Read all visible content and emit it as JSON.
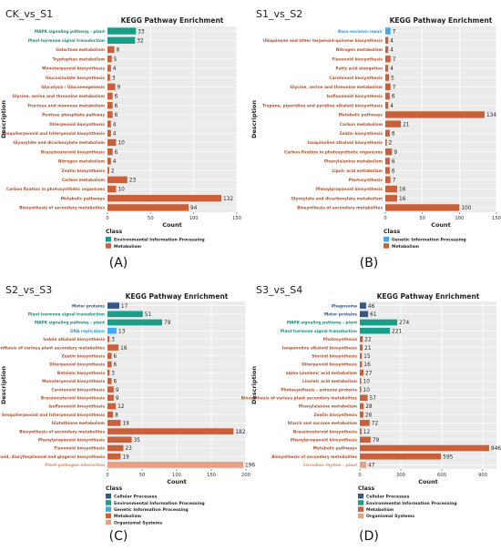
{
  "panels": [
    {
      "label": "(A)",
      "comparison": "CK_vs_S1"
    },
    {
      "label": "(B)",
      "comparison": "S1_vs_S2"
    },
    {
      "label": "(C)",
      "comparison": "S2_vs_S3"
    },
    {
      "label": "(D)",
      "comparison": "S3_vs_S4"
    }
  ],
  "class_colors": {
    "Cellular Processes": "#34568b",
    "Environmental Information Processing": "#1a9e8c",
    "Genetic Information Processing": "#3fa9f5",
    "Metabolism": "#c9603a",
    "Organismal Systems": "#e8a07e"
  },
  "chart_data": [
    {
      "type": "bar",
      "orientation": "horizontal",
      "title": "KEGG Pathway Enrichment",
      "xlabel": "Count",
      "ylabel": "Description",
      "legend_title": "Class",
      "xlim": [
        0,
        150
      ],
      "xticks": [
        0,
        50,
        100,
        150
      ],
      "legend": [
        "Environmental Information Processing",
        "Metabolism"
      ],
      "categories": [
        "MAPK signaling pathway - plant",
        "Plant hormone signal transduction",
        "Galactose metabolism",
        "Tryptophan metabolism",
        "Monoterpenoid biosynthesis",
        "Glucosinolate biosynthesis",
        "Glycolysis / Gluconeogenesis",
        "Glycine, serine and threonine metabolism",
        "Fructose and mannose metabolism",
        "Pentose phosphate pathway",
        "Diterpenoid biosynthesis",
        "Sesquiterpenoid and triterpenoid biosynthesis",
        "Glyoxylate and dicarboxylate metabolism",
        "Brassinosteroid biosynthesis",
        "Nitrogen metabolism",
        "Zeatin biosynthesis",
        "Carbon metabolism",
        "Carbon fixation in photosynthetic organisms",
        "Metabolic pathways",
        "Biosynthesis of secondary metabolites"
      ],
      "values": [
        33,
        32,
        8,
        5,
        4,
        3,
        9,
        6,
        6,
        6,
        4,
        4,
        10,
        6,
        4,
        2,
        23,
        10,
        132,
        94
      ],
      "classes": [
        "Environmental Information Processing",
        "Environmental Information Processing",
        "Metabolism",
        "Metabolism",
        "Metabolism",
        "Metabolism",
        "Metabolism",
        "Metabolism",
        "Metabolism",
        "Metabolism",
        "Metabolism",
        "Metabolism",
        "Metabolism",
        "Metabolism",
        "Metabolism",
        "Metabolism",
        "Metabolism",
        "Metabolism",
        "Metabolism",
        "Metabolism"
      ]
    },
    {
      "type": "bar",
      "orientation": "horizontal",
      "title": "KEGG Pathway Enrichment",
      "xlabel": "Count",
      "ylabel": "Description",
      "legend_title": "Class",
      "xlim": [
        0,
        150
      ],
      "xticks": [
        0,
        50,
        100,
        150
      ],
      "legend": [
        "Genetic Information Processing",
        "Metabolism"
      ],
      "categories": [
        "Base excision repair",
        "Ubiquinone and other terpenoid-quinone biosynthesis",
        "Nitrogen metabolism",
        "Flavonoid biosynthesis",
        "Fatty acid elongation",
        "Carotenoid biosynthesis",
        "Glycine, serine and threonine metabolism",
        "Isoflavonoid biosynthesis",
        "Tropane, piperidine and pyridine alkaloid biosynthesis",
        "Metabolic pathways",
        "Carbon metabolism",
        "Zeatin biosynthesis",
        "Isoquinoline alkaloid biosynthesis",
        "Carbon fixation in photosynthetic organisms",
        "Phenylalanine metabolism",
        "Lipoic acid metabolism",
        "Photosynthesis",
        "Phenylpropanoid biosynthesis",
        "Glyoxylate and dicarboxylate metabolism",
        "Biosynthesis of secondary metabolites"
      ],
      "values": [
        7,
        4,
        4,
        7,
        4,
        5,
        7,
        6,
        4,
        134,
        21,
        6,
        2,
        9,
        6,
        6,
        7,
        16,
        16,
        100
      ],
      "classes": [
        "Genetic Information Processing",
        "Metabolism",
        "Metabolism",
        "Metabolism",
        "Metabolism",
        "Metabolism",
        "Metabolism",
        "Metabolism",
        "Metabolism",
        "Metabolism",
        "Metabolism",
        "Metabolism",
        "Metabolism",
        "Metabolism",
        "Metabolism",
        "Metabolism",
        "Metabolism",
        "Metabolism",
        "Metabolism",
        "Metabolism"
      ]
    },
    {
      "type": "bar",
      "orientation": "horizontal",
      "title": "KEGG Pathway Enrichment",
      "xlabel": "Count",
      "ylabel": "Description",
      "legend_title": "Class",
      "xlim": [
        0,
        200
      ],
      "xticks": [
        0,
        50,
        100,
        150,
        200
      ],
      "legend": [
        "Cellular Processes",
        "Environmental Information Processing",
        "Genetic Information Processing",
        "Metabolism",
        "Organismal Systems"
      ],
      "categories": [
        "Motor proteins",
        "Plant hormone signal transduction",
        "MAPK signaling pathway - plant",
        "DNA replication",
        "Indole alkaloid biosynthesis",
        "Biosynthesis of various plant secondary metabolites",
        "Zeatin biosynthesis",
        "Diterpenoid biosynthesis",
        "Betalain biosynthesis",
        "Monoterpenoid biosynthesis",
        "Carotenoid biosynthesis",
        "Brassinosteroid biosynthesis",
        "Isoflavonoid biosynthesis",
        "Sesquiterpenoid and triterpenoid biosynthesis",
        "Glutathione metabolism",
        "Biosynthesis of secondary metabolites",
        "Phenylpropanoid biosynthesis",
        "Flavonoid biosynthesis",
        "Stilbenoid, diarylheptanoid and gingerol biosynthesis",
        "Plant-pathogen interaction"
      ],
      "values": [
        17,
        51,
        79,
        13,
        3,
        16,
        6,
        6,
        3,
        6,
        9,
        9,
        12,
        8,
        19,
        182,
        35,
        23,
        19,
        196
      ],
      "classes": [
        "Cellular Processes",
        "Environmental Information Processing",
        "Environmental Information Processing",
        "Genetic Information Processing",
        "Metabolism",
        "Metabolism",
        "Metabolism",
        "Metabolism",
        "Metabolism",
        "Metabolism",
        "Metabolism",
        "Metabolism",
        "Metabolism",
        "Metabolism",
        "Metabolism",
        "Metabolism",
        "Metabolism",
        "Metabolism",
        "Metabolism",
        "Organismal Systems"
      ]
    },
    {
      "type": "bar",
      "orientation": "horizontal",
      "title": "KEGG Pathway Enrichment",
      "xlabel": "Count",
      "ylabel": "Description",
      "legend_title": "Class",
      "xlim": [
        0,
        1000
      ],
      "xticks": [
        0,
        300,
        600,
        900
      ],
      "legend": [
        "Cellular Processes",
        "Environmental Information Processing",
        "Metabolism",
        "Organismal Systems"
      ],
      "categories": [
        "Phagosome",
        "Motor proteins",
        "MAPK signaling pathway - plant",
        "Plant hormone signal transduction",
        "Photosynthesis",
        "Isoquinoline alkaloid biosynthesis",
        "Steroid biosynthesis",
        "Diterpenoid biosynthesis",
        "alpha-Linolenic acid metabolism",
        "Linoleic acid metabolism",
        "Photosynthesis - antenna proteins",
        "Biosynthesis of various plant secondary metabolites",
        "Phenylalanine metabolism",
        "Zeatin biosynthesis",
        "Starch and sucrose metabolism",
        "Brassinosteroid biosynthesis",
        "Phenylpropanoid biosynthesis",
        "Metabolic pathways",
        "Biosynthesis of secondary metabolites",
        "Circadian rhythm - plant"
      ],
      "values": [
        46,
        61,
        274,
        221,
        22,
        21,
        15,
        16,
        27,
        10,
        10,
        57,
        28,
        26,
        72,
        12,
        79,
        946,
        595,
        47
      ],
      "classes": [
        "Cellular Processes",
        "Cellular Processes",
        "Environmental Information Processing",
        "Environmental Information Processing",
        "Metabolism",
        "Metabolism",
        "Metabolism",
        "Metabolism",
        "Metabolism",
        "Metabolism",
        "Metabolism",
        "Metabolism",
        "Metabolism",
        "Metabolism",
        "Metabolism",
        "Metabolism",
        "Metabolism",
        "Metabolism",
        "Metabolism",
        "Organismal Systems"
      ]
    }
  ]
}
